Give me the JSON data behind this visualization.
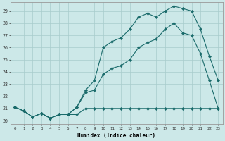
{
  "xlabel": "Humidex (Indice chaleur)",
  "bg_color": "#cce8e8",
  "line_color": "#1a6b6b",
  "grid_color": "#a8cccc",
  "xlim": [
    -0.5,
    23.5
  ],
  "ylim": [
    19.7,
    29.7
  ],
  "yticks": [
    20,
    21,
    22,
    23,
    24,
    25,
    26,
    27,
    28,
    29
  ],
  "xticks": [
    0,
    1,
    2,
    3,
    4,
    5,
    6,
    7,
    8,
    9,
    10,
    11,
    12,
    13,
    14,
    15,
    16,
    17,
    18,
    19,
    20,
    21,
    22,
    23
  ],
  "line1_x": [
    0,
    1,
    2,
    3,
    4,
    5,
    6,
    7,
    8,
    9,
    10,
    11,
    12,
    13,
    14,
    15,
    16,
    17,
    18,
    19,
    20,
    21,
    22,
    23
  ],
  "line1_y": [
    21.1,
    20.8,
    20.3,
    20.6,
    20.2,
    20.5,
    20.5,
    20.5,
    21.0,
    21.0,
    21.0,
    21.0,
    21.0,
    21.0,
    21.0,
    21.0,
    21.0,
    21.0,
    21.0,
    21.0,
    21.0,
    21.0,
    21.0,
    21.0
  ],
  "line2_x": [
    0,
    1,
    2,
    3,
    4,
    5,
    6,
    7,
    8,
    9,
    10,
    11,
    12,
    13,
    14,
    15,
    16,
    17,
    18,
    19,
    20,
    21,
    22,
    23
  ],
  "line2_y": [
    21.1,
    20.8,
    20.3,
    20.6,
    20.2,
    20.5,
    20.5,
    21.1,
    22.3,
    22.5,
    23.8,
    24.3,
    24.5,
    25.0,
    26.0,
    26.4,
    26.7,
    27.5,
    28.0,
    27.2,
    27.0,
    25.5,
    23.3,
    21.0
  ],
  "line3_x": [
    0,
    1,
    2,
    3,
    4,
    5,
    6,
    7,
    8,
    9,
    10,
    11,
    12,
    13,
    14,
    15,
    16,
    17,
    18,
    19,
    20,
    21,
    22,
    23
  ],
  "line3_y": [
    21.1,
    20.8,
    20.3,
    20.6,
    20.2,
    20.5,
    20.5,
    21.1,
    22.5,
    23.3,
    26.0,
    26.5,
    26.8,
    27.5,
    28.5,
    28.8,
    28.5,
    29.0,
    29.4,
    29.2,
    29.0,
    27.5,
    25.3,
    23.3
  ]
}
